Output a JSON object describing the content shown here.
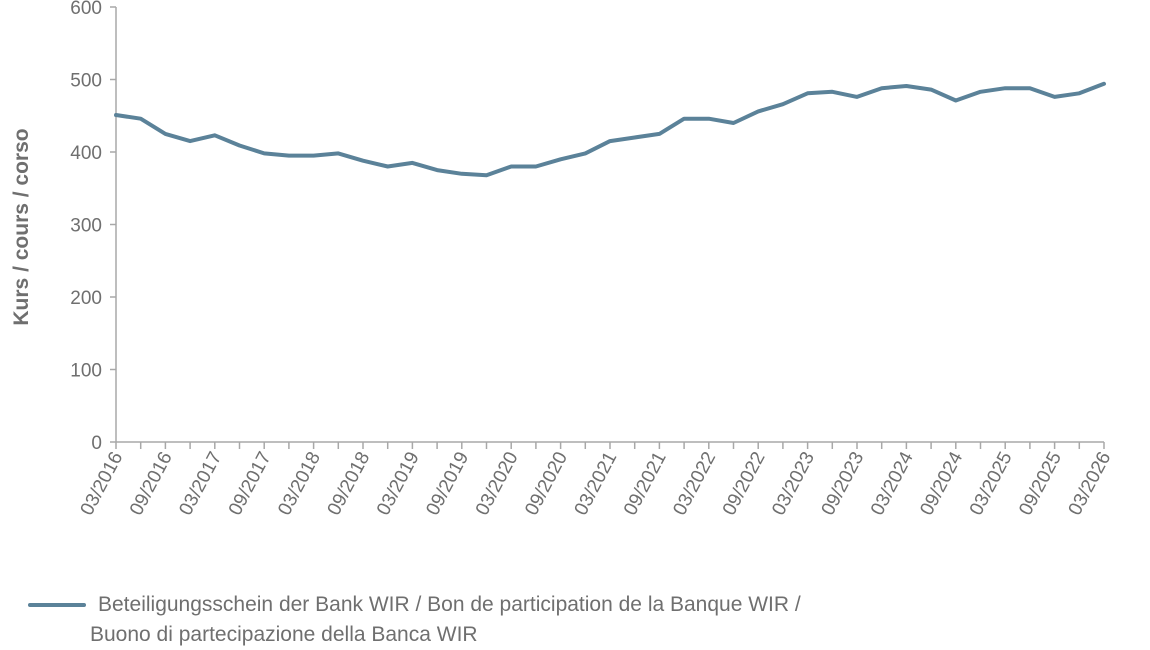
{
  "chart_data": {
    "type": "line",
    "title": "",
    "xlabel": "",
    "ylabel": "Kurs / cours / corso",
    "ylim": [
      0,
      600
    ],
    "yticks": [
      0,
      100,
      200,
      300,
      400,
      500,
      600
    ],
    "grid": false,
    "legend_position": "bottom-left",
    "x_tick_labels": [
      "03/2016",
      "09/2016",
      "03/2017",
      "09/2017",
      "03/2018",
      "09/2018",
      "03/2019",
      "09/2019",
      "03/2020",
      "09/2020",
      "03/2021",
      "09/2021",
      "03/2022",
      "09/2022",
      "03/2023",
      "09/2023",
      "03/2024",
      "09/2024",
      "03/2025",
      "09/2025",
      "03/2026"
    ],
    "series": [
      {
        "name": "Beteiligungsschein der Bank WIR / Bon de participation de la Banque WIR / Buono di partecipazione della Banca WIR",
        "color": "#5b8299",
        "values": [
          451,
          446,
          425,
          415,
          423,
          409,
          398,
          395,
          395,
          398,
          388,
          380,
          385,
          375,
          370,
          368,
          380,
          380,
          390,
          398,
          415,
          420,
          425,
          446,
          446,
          440,
          456,
          466,
          481,
          483,
          476,
          488,
          491,
          486,
          471,
          483,
          488,
          488,
          476,
          481,
          494
        ]
      }
    ]
  }
}
